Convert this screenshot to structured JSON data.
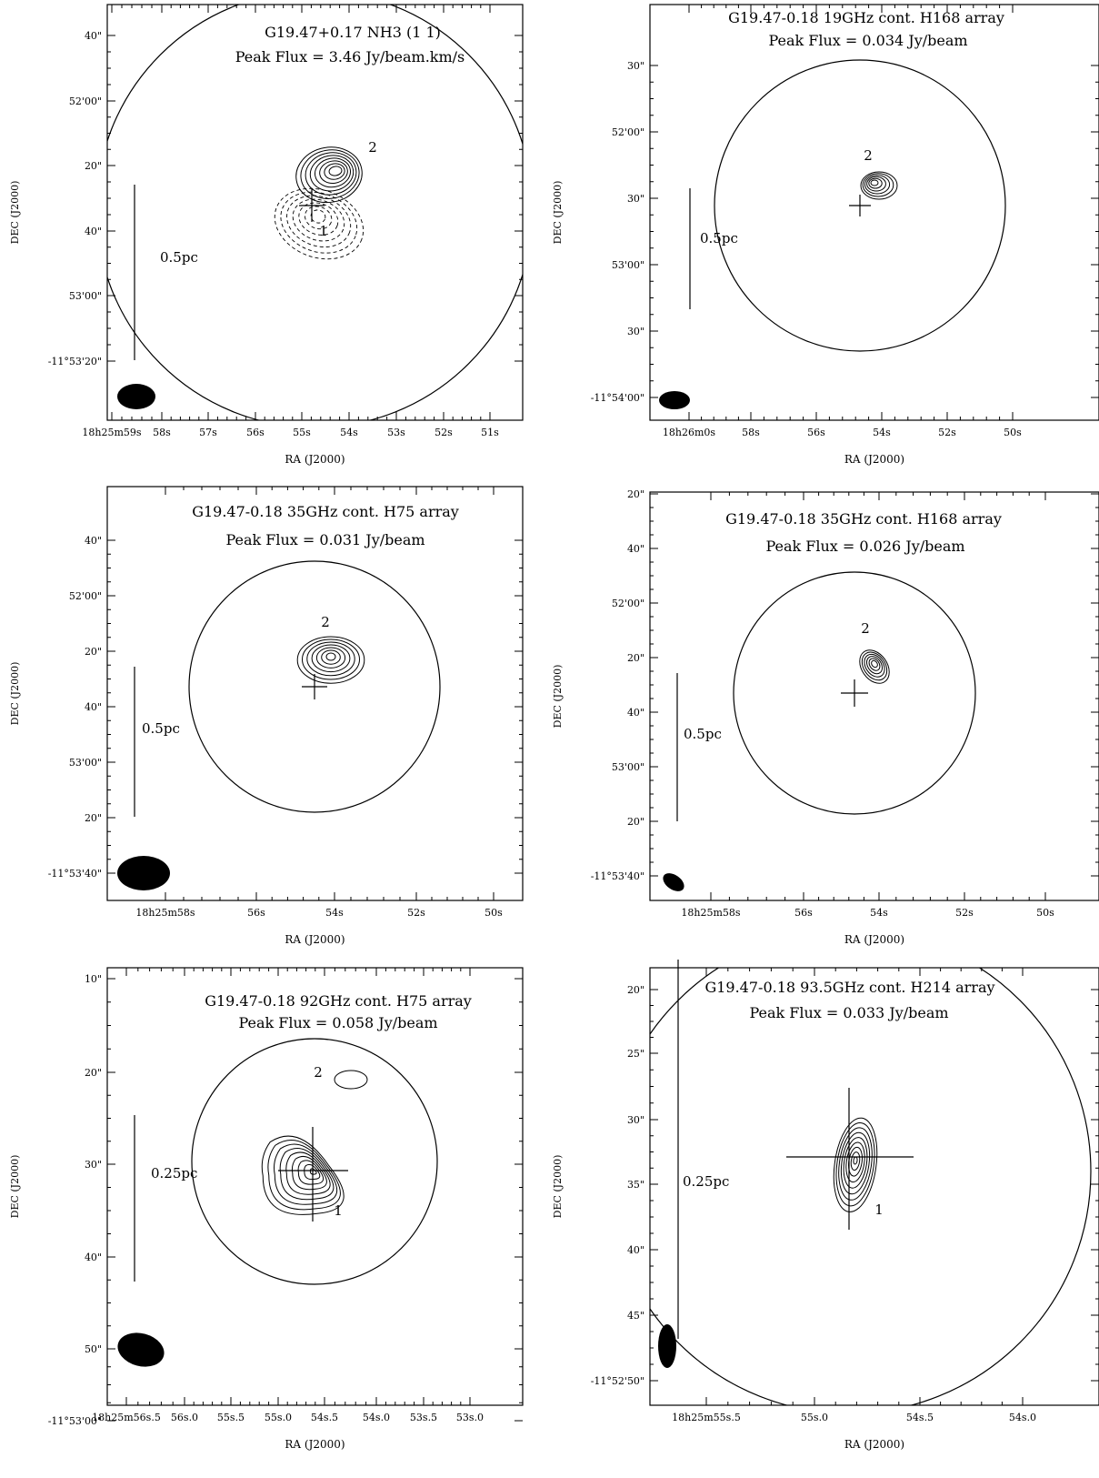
{
  "chart_data": [
    {
      "type": "contour",
      "title": "G19.47+0.17 NH3 (1 1)",
      "subtitle": "Peak Flux = 3.46 Jy/beam.km/s",
      "xlabel": "RA (J2000)",
      "ylabel": "DEC (J2000)",
      "x_ticks": [
        "18h25m59s",
        "58s",
        "57s",
        "56s",
        "55s",
        "54s",
        "53s",
        "52s",
        "51s"
      ],
      "y_ticks": [
        "40\"",
        "52'00\"",
        "20\"",
        "40\"",
        "53'00\"",
        "-11°53'20\""
      ],
      "scale_bar": "0.5pc",
      "sources": [
        "2",
        "1"
      ],
      "contour_levels": 8,
      "dashed_contours": true
    },
    {
      "type": "contour",
      "title": "G19.47-0.18 19GHz cont. H168 array",
      "subtitle": "Peak Flux = 0.034 Jy/beam",
      "xlabel": "RA (J2000)",
      "ylabel": "DEC (J2000)",
      "x_ticks": [
        "18h26m0s",
        "58s",
        "56s",
        "54s",
        "52s",
        "50s"
      ],
      "y_ticks": [
        "30\"",
        "52'00\"",
        "30\"",
        "53'00\"",
        "30\"",
        "-11°54'00\""
      ],
      "scale_bar": "0.5pc",
      "sources": [
        "2"
      ],
      "contour_levels": 6
    },
    {
      "type": "contour",
      "title": "G19.47-0.18 35GHz cont. H75 array",
      "subtitle": "Peak Flux = 0.031 Jy/beam",
      "xlabel": "RA (J2000)",
      "ylabel": "DEC (J2000)",
      "x_ticks": [
        "18h25m58s",
        "56s",
        "54s",
        "52s",
        "50s"
      ],
      "y_ticks": [
        "40\"",
        "52'00\"",
        "20\"",
        "40\"",
        "53'00\"",
        "20\"",
        "-11°53'40\""
      ],
      "scale_bar": "0.5pc",
      "sources": [
        "2"
      ],
      "contour_levels": 7
    },
    {
      "type": "contour",
      "title": "G19.47-0.18 35GHz cont. H168 array",
      "subtitle": "Peak Flux = 0.026 Jy/beam",
      "xlabel": "RA (J2000)",
      "ylabel": "DEC (J2000)",
      "x_ticks": [
        "18h25m58s",
        "56s",
        "54s",
        "52s",
        "50s"
      ],
      "y_ticks": [
        "20\"",
        "40\"",
        "52'00\"",
        "20\"",
        "40\"",
        "53'00\"",
        "20\"",
        "-11°53'40\""
      ],
      "scale_bar": "0.5pc",
      "sources": [
        "2"
      ],
      "contour_levels": 6
    },
    {
      "type": "contour",
      "title": "G19.47-0.18 92GHz cont. H75 array",
      "subtitle": "Peak Flux = 0.058 Jy/beam",
      "xlabel": "RA (J2000)",
      "ylabel": "DEC (J2000)",
      "x_ticks": [
        "18h25m56s.5",
        "56s.0",
        "55s.5",
        "55s.0",
        "54s.5",
        "54s.0",
        "53s.5",
        "53s.0"
      ],
      "y_ticks": [
        "10\"",
        "20\"",
        "30\"",
        "40\"",
        "50\"",
        "-11°53'00\""
      ],
      "scale_bar": "0.25pc",
      "sources": [
        "2",
        "1"
      ],
      "contour_levels": 9
    },
    {
      "type": "contour",
      "title": "G19.47-0.18 93.5GHz cont. H214 array",
      "subtitle": "Peak Flux = 0.033 Jy/beam",
      "xlabel": "RA (J2000)",
      "ylabel": "DEC (J2000)",
      "x_ticks": [
        "18h25m55s.5",
        "55s.0",
        "54s.5",
        "54s.0"
      ],
      "y_ticks": [
        "20\"",
        "25\"",
        "30\"",
        "35\"",
        "40\"",
        "45\"",
        "-11°52'50\""
      ],
      "scale_bar": "0.25pc",
      "sources": [
        "1"
      ],
      "contour_levels": 9
    }
  ]
}
